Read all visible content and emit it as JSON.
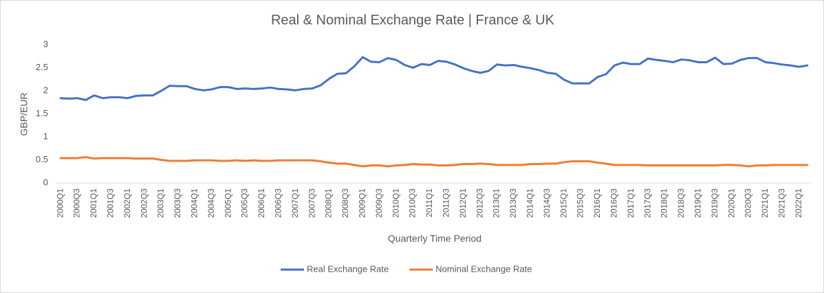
{
  "chart_data": {
    "type": "line",
    "title": "Real & Nominal Exchange Rate | France & UK",
    "x_label": "Quarterly Time Period",
    "y_label": "GBP/EUR",
    "categories": [
      "2000Q1",
      null,
      "2000Q3",
      null,
      "2001Q1",
      null,
      "2001Q3",
      null,
      "2002Q1",
      null,
      "2002Q3",
      null,
      "2003Q1",
      null,
      "2003Q3",
      null,
      "2004Q1",
      null,
      "2004Q3",
      null,
      "2005Q1",
      null,
      "2005Q3",
      null,
      "2006Q1",
      null,
      "2006Q3",
      null,
      "2007Q1",
      null,
      "2007Q3",
      null,
      "2008Q1",
      null,
      "2008Q3",
      null,
      "2009Q1",
      null,
      "2009Q3",
      null,
      "2010Q1",
      null,
      "2010Q3",
      null,
      "2011Q1",
      null,
      "2011Q3",
      null,
      "2012Q1",
      null,
      "2012Q3",
      null,
      "2013Q1",
      null,
      "2013Q3",
      null,
      "2014Q1",
      null,
      "2014Q3",
      null,
      "2015Q1",
      null,
      "2015Q3",
      null,
      "2016Q1",
      null,
      "2016Q3",
      null,
      "2017Q1",
      null,
      "2017Q3",
      null,
      "2018Q1",
      null,
      "2018Q3",
      null,
      "2019Q1",
      null,
      "2019Q3",
      null,
      "2020Q1",
      null,
      "2020Q3",
      null,
      "2021Q1",
      null,
      "2021Q3",
      null,
      "2022Q1",
      null
    ],
    "series": [
      {
        "name": "Real Exchange Rate",
        "color": "#4472c4",
        "values": [
          1.84,
          1.83,
          1.84,
          1.8,
          1.9,
          1.84,
          1.86,
          1.86,
          1.84,
          1.89,
          1.9,
          1.9,
          2.0,
          2.11,
          2.1,
          2.1,
          2.04,
          2.01,
          2.03,
          2.08,
          2.08,
          2.04,
          2.05,
          2.04,
          2.05,
          2.07,
          2.04,
          2.03,
          2.01,
          2.04,
          2.05,
          2.12,
          2.26,
          2.37,
          2.38,
          2.53,
          2.73,
          2.63,
          2.62,
          2.71,
          2.67,
          2.56,
          2.5,
          2.58,
          2.56,
          2.65,
          2.63,
          2.57,
          2.49,
          2.43,
          2.39,
          2.43,
          2.57,
          2.55,
          2.56,
          2.52,
          2.49,
          2.45,
          2.39,
          2.37,
          2.24,
          2.16,
          2.16,
          2.16,
          2.3,
          2.36,
          2.55,
          2.61,
          2.58,
          2.58,
          2.7,
          2.67,
          2.65,
          2.62,
          2.68,
          2.66,
          2.62,
          2.62,
          2.72,
          2.58,
          2.59,
          2.67,
          2.71,
          2.71,
          2.62,
          2.6,
          2.57,
          2.55,
          2.52,
          2.55
        ]
      },
      {
        "name": "Nominal Exchange Rate",
        "color": "#ed7d31",
        "values": [
          0.54,
          0.54,
          0.54,
          0.56,
          0.53,
          0.54,
          0.54,
          0.54,
          0.54,
          0.53,
          0.53,
          0.53,
          0.5,
          0.48,
          0.48,
          0.48,
          0.49,
          0.49,
          0.49,
          0.48,
          0.48,
          0.49,
          0.48,
          0.49,
          0.48,
          0.48,
          0.49,
          0.49,
          0.49,
          0.49,
          0.49,
          0.47,
          0.44,
          0.42,
          0.42,
          0.39,
          0.36,
          0.38,
          0.38,
          0.36,
          0.38,
          0.39,
          0.41,
          0.4,
          0.4,
          0.38,
          0.38,
          0.39,
          0.41,
          0.41,
          0.42,
          0.41,
          0.39,
          0.39,
          0.39,
          0.39,
          0.41,
          0.41,
          0.42,
          0.42,
          0.45,
          0.47,
          0.47,
          0.47,
          0.44,
          0.42,
          0.39,
          0.39,
          0.39,
          0.39,
          0.38,
          0.38,
          0.38,
          0.38,
          0.38,
          0.38,
          0.38,
          0.38,
          0.38,
          0.39,
          0.39,
          0.38,
          0.36,
          0.38,
          0.38,
          0.39,
          0.39,
          0.39,
          0.39,
          0.39
        ]
      }
    ],
    "ylim": [
      0,
      3
    ],
    "yticks": [
      0,
      0.5,
      1,
      1.5,
      2,
      2.5,
      3
    ],
    "grid": false
  }
}
